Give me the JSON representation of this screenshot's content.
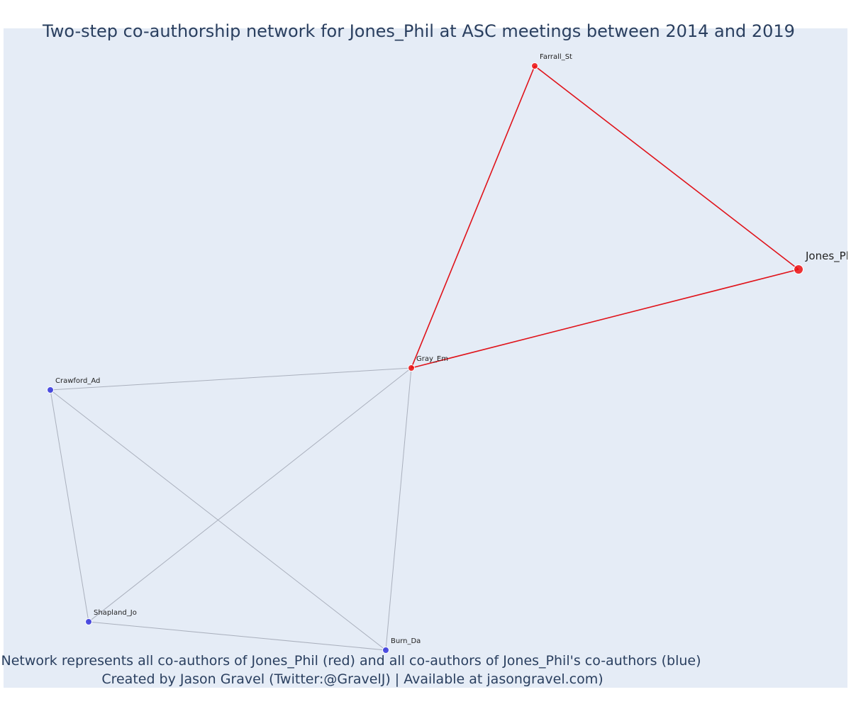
{
  "title": "Two-step co-authorship network for Jones_Phil at ASC meetings between 2014 and 2019",
  "caption_line1": "Network represents all co-authors of Jones_Phil (red) and all co-authors of Jones_Phil's co-authors (blue)",
  "caption_line2": "Created by Jason Gravel (Twitter:@GravelJ) | Available at jasongravel.com)",
  "colors": {
    "red": "#ee1111",
    "blue": "#3333dd",
    "edge_red": "#e0131a",
    "edge_gray": "#aab0bd",
    "background": "#e5ecf6",
    "text": "#2a3f5f"
  },
  "nodes": [
    {
      "id": "Jones_Phil",
      "label": "Jones_Phil",
      "group": "red",
      "focal": true
    },
    {
      "id": "Farrall_St",
      "label": "Farrall_St",
      "group": "red",
      "focal": false
    },
    {
      "id": "Gray_Em",
      "label": "Gray_Em",
      "group": "red",
      "focal": false
    },
    {
      "id": "Crawford_Ad",
      "label": "Crawford_Ad",
      "group": "blue",
      "focal": false
    },
    {
      "id": "Shapland_Jo",
      "label": "Shapland_Jo",
      "group": "blue",
      "focal": false
    },
    {
      "id": "Burn_Da",
      "label": "Burn_Da",
      "group": "blue",
      "focal": false
    }
  ],
  "edges": [
    {
      "source": "Farrall_St",
      "target": "Jones_Phil",
      "group": "red"
    },
    {
      "source": "Farrall_St",
      "target": "Gray_Em",
      "group": "red"
    },
    {
      "source": "Gray_Em",
      "target": "Jones_Phil",
      "group": "red"
    },
    {
      "source": "Gray_Em",
      "target": "Crawford_Ad",
      "group": "gray"
    },
    {
      "source": "Gray_Em",
      "target": "Shapland_Jo",
      "group": "gray"
    },
    {
      "source": "Gray_Em",
      "target": "Burn_Da",
      "group": "gray"
    },
    {
      "source": "Crawford_Ad",
      "target": "Shapland_Jo",
      "group": "gray"
    },
    {
      "source": "Crawford_Ad",
      "target": "Burn_Da",
      "group": "gray"
    },
    {
      "source": "Shapland_Jo",
      "target": "Burn_Da",
      "group": "gray"
    }
  ]
}
